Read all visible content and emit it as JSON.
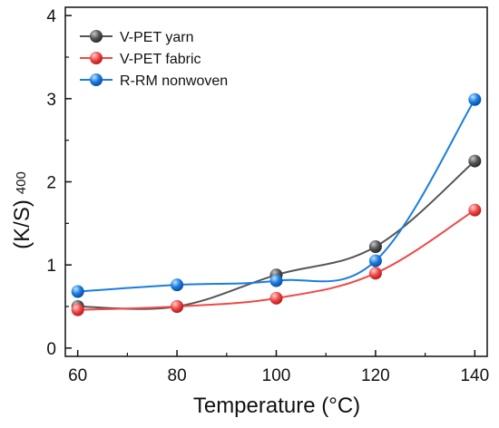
{
  "chart_data": {
    "type": "line",
    "title": "",
    "xlabel": "Temperature (°C)",
    "ylabel_main": "(K/S)",
    "ylabel_sub": "400",
    "x": [
      60,
      80,
      100,
      120,
      140
    ],
    "x_ticks": [
      "60",
      "80",
      "100",
      "120",
      "140"
    ],
    "y_ticks": [
      "0",
      "1",
      "2",
      "3",
      "4"
    ],
    "xlim": [
      57.5,
      142.5
    ],
    "ylim": [
      -0.1,
      4.1
    ],
    "grid": false,
    "legend_position": "top-left",
    "series": [
      {
        "name": "V-PET yarn",
        "color": "#555555",
        "values": [
          0.5,
          0.5,
          0.88,
          1.22,
          2.25
        ]
      },
      {
        "name": "V-PET fabric",
        "color": "#f04848",
        "values": [
          0.46,
          0.5,
          0.6,
          0.9,
          1.66
        ]
      },
      {
        "name": "R-RM nonwoven",
        "color": "#1a7de0",
        "values": [
          0.68,
          0.76,
          0.81,
          1.05,
          2.99
        ]
      }
    ]
  }
}
